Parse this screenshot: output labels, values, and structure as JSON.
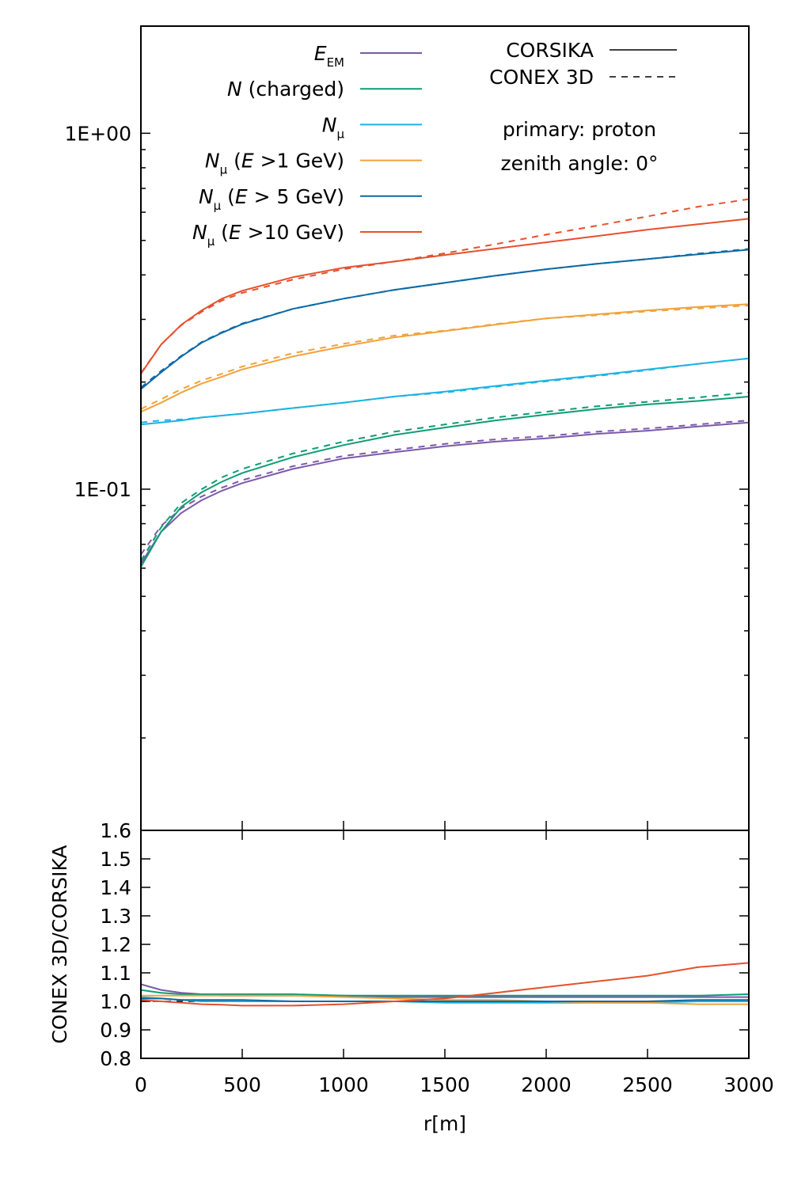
{
  "chart_data": [
    {
      "type": "line",
      "log_y": true,
      "x": [
        0,
        100,
        200,
        300,
        400,
        500,
        750,
        1000,
        1250,
        1500,
        1750,
        2000,
        2250,
        2500,
        2750,
        3000
      ],
      "xlim": [
        0,
        3000
      ],
      "xticks": [
        0,
        500,
        1000,
        1500,
        2000,
        2500,
        3000
      ],
      "ylim": [
        0.011,
        2
      ],
      "yticks": [
        {
          "value": 1,
          "label": "1E+00"
        },
        {
          "value": 0.1,
          "label": "1E-01"
        }
      ],
      "yminorticks": [
        0.02,
        0.03,
        0.04,
        0.05,
        0.06,
        0.07,
        0.08,
        0.09,
        0.2,
        0.3,
        0.4,
        0.5,
        0.6,
        0.7,
        0.8,
        0.9
      ],
      "line_styles": [
        {
          "name": "CORSIKA",
          "dash": "solid"
        },
        {
          "name": "CONEX 3D",
          "dash": "dashed"
        }
      ],
      "annotations": [
        "primary: proton",
        "zenith angle: 0°"
      ],
      "series": [
        {
          "name": [
            {
              "text": "E",
              "style": "italic"
            },
            {
              "text": "EM",
              "style": "sub"
            }
          ],
          "color": "#7b59aa",
          "lines": [
            [
              0.0618,
              0.0759,
              0.0858,
              0.0931,
              0.099,
              0.104,
              0.114,
              0.122,
              0.127,
              0.132,
              0.136,
              0.139,
              0.143,
              0.146,
              0.15,
              0.154
            ],
            [
              0.0655,
              0.0789,
              0.0884,
              0.0954,
              0.101,
              0.106,
              0.116,
              0.124,
              0.129,
              0.134,
              0.138,
              0.141,
              0.145,
              0.148,
              0.152,
              0.156
            ]
          ]
        },
        {
          "name": [
            {
              "text": "N",
              "style": "italic"
            },
            {
              "text": " (charged)",
              "style": "normal"
            }
          ],
          "color": "#0f9c74",
          "lines": [
            [
              0.0605,
              0.0759,
              0.0893,
              0.098,
              0.105,
              0.111,
              0.123,
              0.133,
              0.142,
              0.149,
              0.156,
              0.162,
              0.168,
              0.173,
              0.177,
              0.182
            ],
            [
              0.0629,
              0.0782,
              0.0915,
              0.1,
              0.108,
              0.114,
              0.126,
              0.136,
              0.145,
              0.152,
              0.159,
              0.165,
              0.171,
              0.176,
              0.181,
              0.187
            ]
          ]
        },
        {
          "name": [
            {
              "text": "N",
              "style": "italic"
            },
            {
              "text": "μ",
              "style": "sub"
            }
          ],
          "color": "#1cb3e3",
          "lines": [
            [
              0.152,
              0.154,
              0.156,
              0.159,
              0.161,
              0.163,
              0.169,
              0.175,
              0.182,
              0.188,
              0.195,
              0.202,
              0.209,
              0.217,
              0.225,
              0.233
            ],
            [
              0.154,
              0.156,
              0.157,
              0.159,
              0.161,
              0.163,
              0.169,
              0.175,
              0.182,
              0.187,
              0.194,
              0.201,
              0.208,
              0.216,
              0.225,
              0.233
            ]
          ]
        },
        {
          "name": [
            {
              "text": "N",
              "style": "italic"
            },
            {
              "text": "μ",
              "style": "sub"
            },
            {
              "text": " (",
              "style": "normal"
            },
            {
              "text": "E",
              "style": "italic"
            },
            {
              "text": " >1 GeV)",
              "style": "normal"
            }
          ],
          "color": "#f2a23a",
          "lines": [
            [
              0.165,
              0.175,
              0.187,
              0.198,
              0.207,
              0.217,
              0.236,
              0.252,
              0.267,
              0.278,
              0.29,
              0.302,
              0.31,
              0.318,
              0.325,
              0.331
            ],
            [
              0.168,
              0.179,
              0.191,
              0.202,
              0.211,
              0.221,
              0.241,
              0.256,
              0.27,
              0.279,
              0.291,
              0.302,
              0.308,
              0.316,
              0.322,
              0.328
            ]
          ]
        },
        {
          "name": [
            {
              "text": "N",
              "style": "italic"
            },
            {
              "text": "μ",
              "style": "sub"
            },
            {
              "text": " (",
              "style": "normal"
            },
            {
              "text": "E",
              "style": "italic"
            },
            {
              "text": " > 5 GeV)",
              "style": "normal"
            }
          ],
          "color": "#0b6aa6",
          "lines": [
            [
              0.191,
              0.213,
              0.236,
              0.258,
              0.275,
              0.291,
              0.321,
              0.343,
              0.363,
              0.38,
              0.398,
              0.415,
              0.43,
              0.443,
              0.457,
              0.471
            ],
            [
              0.193,
              0.215,
              0.237,
              0.259,
              0.276,
              0.292,
              0.321,
              0.343,
              0.363,
              0.38,
              0.398,
              0.415,
              0.43,
              0.443,
              0.459,
              0.473
            ]
          ]
        },
        {
          "name": [
            {
              "text": "N",
              "style": "italic"
            },
            {
              "text": "μ",
              "style": "sub"
            },
            {
              "text": " (",
              "style": "normal"
            },
            {
              "text": "E",
              "style": "italic"
            },
            {
              "text": " >10 GeV)",
              "style": "normal"
            }
          ],
          "color": "#e6502c",
          "lines": [
            [
              0.211,
              0.255,
              0.29,
              0.318,
              0.343,
              0.361,
              0.394,
              0.419,
              0.436,
              0.455,
              0.474,
              0.494,
              0.514,
              0.536,
              0.555,
              0.575
            ],
            [
              0.212,
              0.255,
              0.289,
              0.315,
              0.339,
              0.356,
              0.388,
              0.415,
              0.436,
              0.46,
              0.488,
              0.519,
              0.55,
              0.584,
              0.622,
              0.653
            ]
          ]
        }
      ]
    },
    {
      "type": "line",
      "log_y": false,
      "x": [
        0,
        100,
        200,
        300,
        400,
        500,
        750,
        1000,
        1250,
        1500,
        1750,
        2000,
        2250,
        2500,
        2750,
        3000
      ],
      "xlim": [
        0,
        3000
      ],
      "xticks": [
        0,
        500,
        1000,
        1500,
        2000,
        2500,
        3000
      ],
      "ylim": [
        0.8,
        1.6
      ],
      "yticks": [
        0.8,
        0.9,
        {
          "value": 1,
          "label": "1.0"
        },
        1.1,
        1.2,
        1.3,
        1.4,
        1.5,
        1.6
      ],
      "x_label": "r[m]",
      "y_label": "CONEX 3D/CORSIKA",
      "reference_line": 1,
      "series": [
        {
          "color": "#7b59aa",
          "values": [
            1.06,
            1.04,
            1.03,
            1.025,
            1.02,
            1.02,
            1.02,
            1.02,
            1.015,
            1.015,
            1.015,
            1.015,
            1.015,
            1.015,
            1.015,
            1.015
          ]
        },
        {
          "color": "#0f9c74",
          "values": [
            1.04,
            1.03,
            1.025,
            1.025,
            1.025,
            1.025,
            1.025,
            1.02,
            1.02,
            1.02,
            1.02,
            1.02,
            1.02,
            1.02,
            1.02,
            1.025
          ]
        },
        {
          "color": "#1cb3e3",
          "values": [
            1.015,
            1.01,
            1.005,
            1.0,
            1.0,
            1.0,
            1.0,
            1.0,
            1.0,
            0.995,
            0.995,
            0.995,
            0.995,
            0.995,
            1.0,
            1.0
          ]
        },
        {
          "color": "#f2a23a",
          "values": [
            1.02,
            1.02,
            1.02,
            1.02,
            1.02,
            1.02,
            1.02,
            1.015,
            1.01,
            1.005,
            1.005,
            1.0,
            0.995,
            0.995,
            0.99,
            0.99
          ]
        },
        {
          "color": "#0b6aa6",
          "values": [
            1.01,
            1.01,
            1.005,
            1.005,
            1.005,
            1.005,
            1.0,
            1.0,
            1.0,
            1.0,
            1.0,
            1.0,
            1.0,
            1.0,
            1.005,
            1.005
          ]
        },
        {
          "color": "#e6502c",
          "values": [
            1.005,
            1.0,
            0.995,
            0.99,
            0.988,
            0.985,
            0.985,
            0.99,
            1.0,
            1.01,
            1.03,
            1.05,
            1.07,
            1.09,
            1.12,
            1.135
          ]
        }
      ]
    }
  ]
}
